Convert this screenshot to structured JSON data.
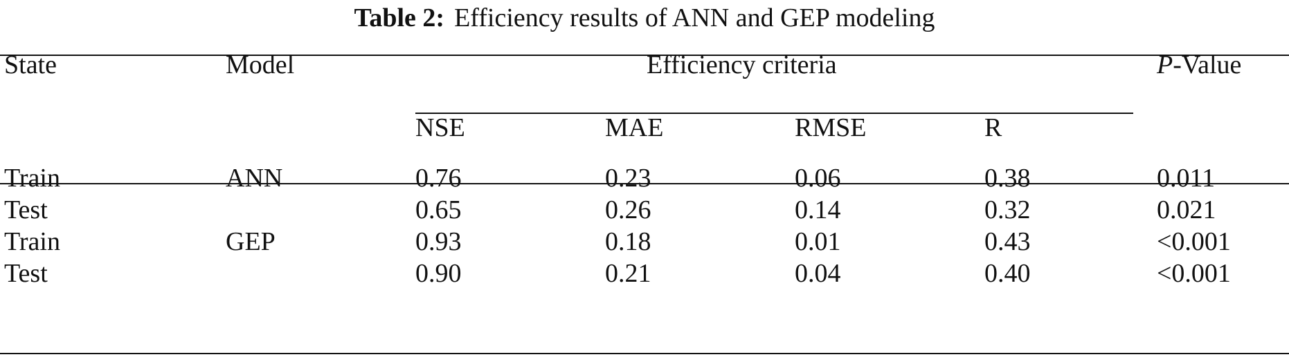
{
  "table": {
    "caption_label": "Table 2:",
    "caption_text": "Efficiency results of ANN and GEP modeling",
    "headers": {
      "state": "State",
      "model": "Model",
      "group": "Efficiency criteria",
      "p_value_prefix": "P",
      "p_value_suffix": "-Value",
      "sub": [
        "NSE",
        "MAE",
        "RMSE",
        "R"
      ]
    },
    "rows": [
      {
        "state": "Train",
        "model": "ANN",
        "nse": "0.76",
        "mae": "0.23",
        "rmse": "0.06",
        "r": "0.38",
        "p": "0.011"
      },
      {
        "state": "Test",
        "model": "",
        "nse": "0.65",
        "mae": "0.26",
        "rmse": "0.14",
        "r": "0.32",
        "p": "0.021"
      },
      {
        "state": "Train",
        "model": "GEP",
        "nse": "0.93",
        "mae": "0.18",
        "rmse": "0.01",
        "r": "0.43",
        "p": "<0.001"
      },
      {
        "state": "Test",
        "model": "",
        "nse": "0.90",
        "mae": "0.21",
        "rmse": "0.04",
        "r": "0.40",
        "p": "<0.001"
      }
    ]
  }
}
